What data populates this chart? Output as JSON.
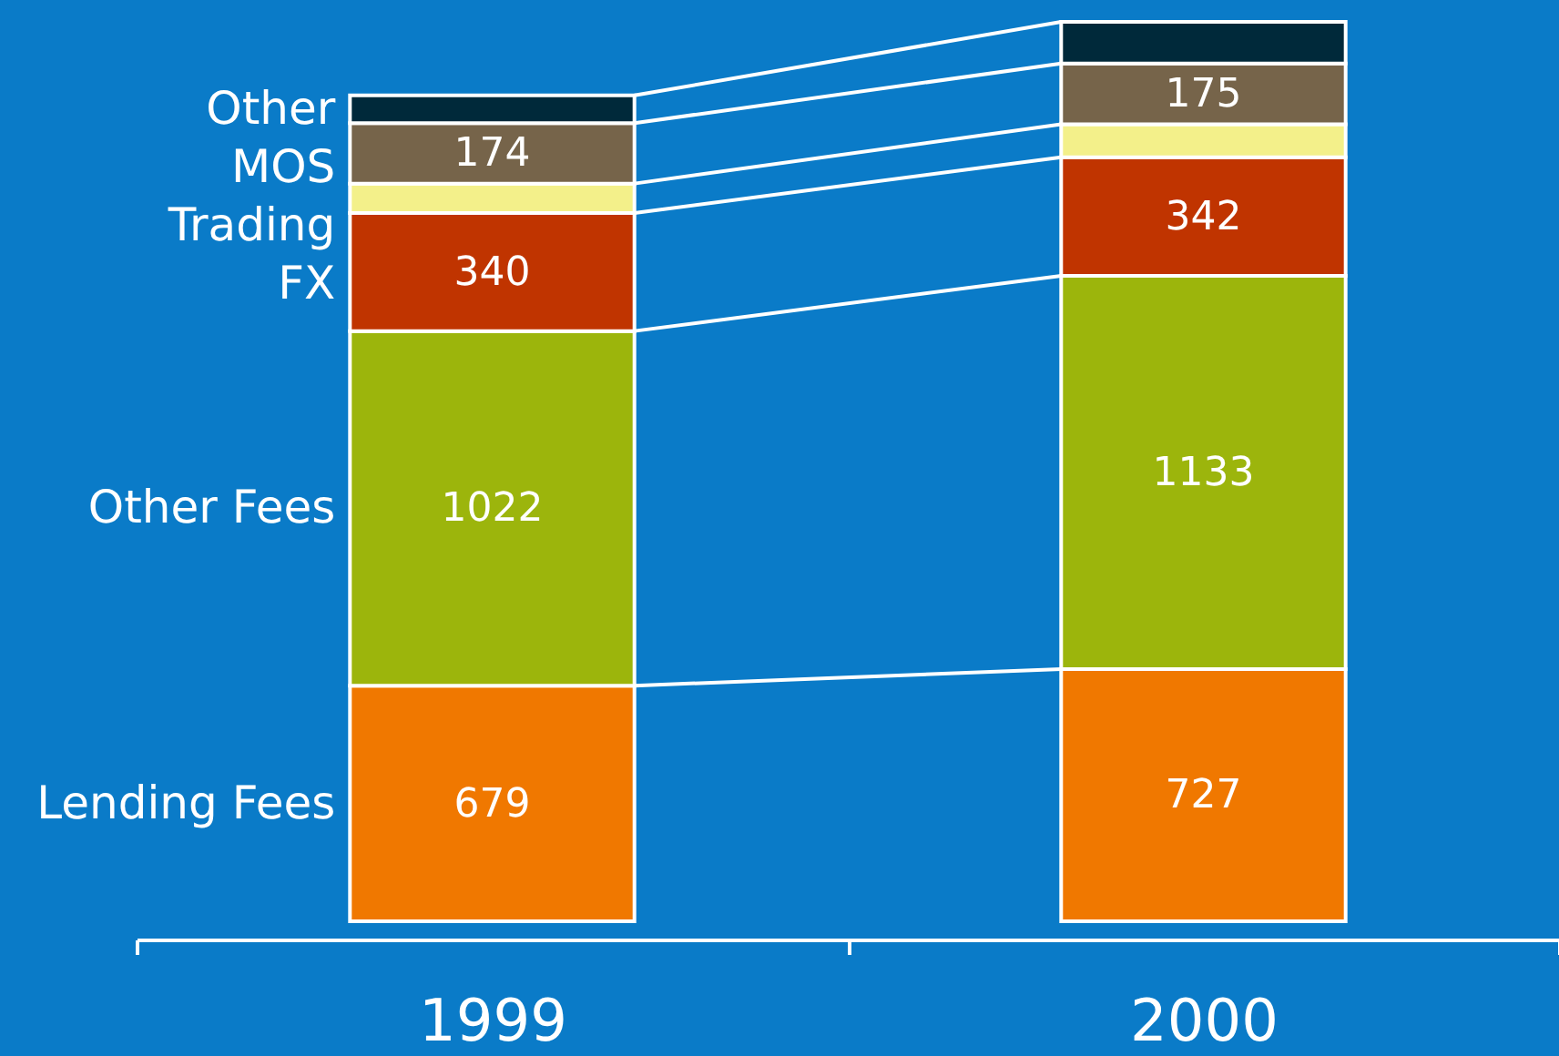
{
  "chart_data": {
    "type": "bar",
    "stacked": true,
    "categories": [
      "1999",
      "2000"
    ],
    "series": [
      {
        "name": "Lending Fees",
        "color": "#f07800",
        "values": [
          679,
          727
        ],
        "value_labels": [
          "679",
          "727"
        ]
      },
      {
        "name": "Other Fees",
        "color": "#9cb50c",
        "values": [
          1022,
          1133
        ],
        "value_labels": [
          "1022",
          "1133"
        ]
      },
      {
        "name": "FX",
        "color": "#c03400",
        "values": [
          340,
          342
        ],
        "value_labels": [
          "340",
          "342"
        ]
      },
      {
        "name": "Trading",
        "color": "#f3f08a",
        "values": [
          85,
          95
        ],
        "value_labels": [
          null,
          null
        ]
      },
      {
        "name": "MOS",
        "color": "#76644a",
        "values": [
          174,
          175
        ],
        "value_labels": [
          "174",
          "175"
        ]
      },
      {
        "name": "Other",
        "color": "#00293a",
        "values": [
          80,
          120
        ],
        "value_labels": [
          null,
          null
        ]
      }
    ],
    "grid": false,
    "legend": false
  }
}
